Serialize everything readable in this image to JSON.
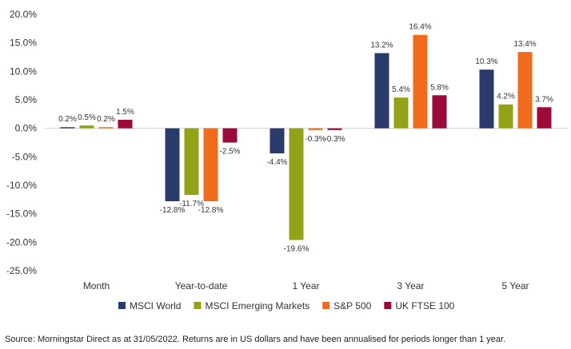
{
  "chart_data": {
    "type": "bar",
    "categories": [
      "Month",
      "Year-to-date",
      "1 Year",
      "3 Year",
      "5 Year"
    ],
    "series": [
      {
        "name": "MSCI World",
        "color": "#2a3b6b",
        "values": [
          0.2,
          -12.8,
          -4.4,
          13.2,
          10.3
        ],
        "labels": [
          "0.2%",
          "-12.8%",
          "-4.4%",
          "13.2%",
          "10.3%"
        ]
      },
      {
        "name": "MSCI Emerging Markets",
        "color": "#93a318",
        "values": [
          0.5,
          -11.7,
          -19.6,
          5.4,
          4.2
        ],
        "labels": [
          "0.5%",
          "-11.7%",
          "-19.6%",
          "5.4%",
          "4.2%"
        ]
      },
      {
        "name": "S&P 500",
        "color": "#f26b1d",
        "values": [
          0.2,
          -12.8,
          -0.3,
          16.4,
          13.4
        ],
        "labels": [
          "0.2%",
          "-12.8%",
          "-0.3%",
          "16.4%",
          "13.4%"
        ]
      },
      {
        "name": "UK FTSE 100",
        "color": "#9c0a3a",
        "values": [
          1.5,
          -2.5,
          -0.3,
          5.8,
          3.7
        ],
        "labels": [
          "1.5%",
          "-2.5%",
          "-0.3%",
          "5.8%",
          "3.7%"
        ]
      }
    ],
    "yticks": [
      20,
      15,
      10,
      5,
      0,
      -5,
      -10,
      -15,
      -20,
      -25
    ],
    "ytick_labels": [
      "20.0%",
      "15.0%",
      "10.0%",
      "5.0%",
      "0.0%",
      "-5.0%",
      "-10.0%",
      "-15.0%",
      "-20.0%",
      "-25.0%"
    ],
    "ylim": [
      -25,
      20
    ],
    "grid": false,
    "legend_position": "bottom"
  },
  "footer": {
    "source": "Source: Morningstar Direct as at 31/05/2022. Returns are in US dollars and have been annualised for periods longer than 1 year."
  }
}
